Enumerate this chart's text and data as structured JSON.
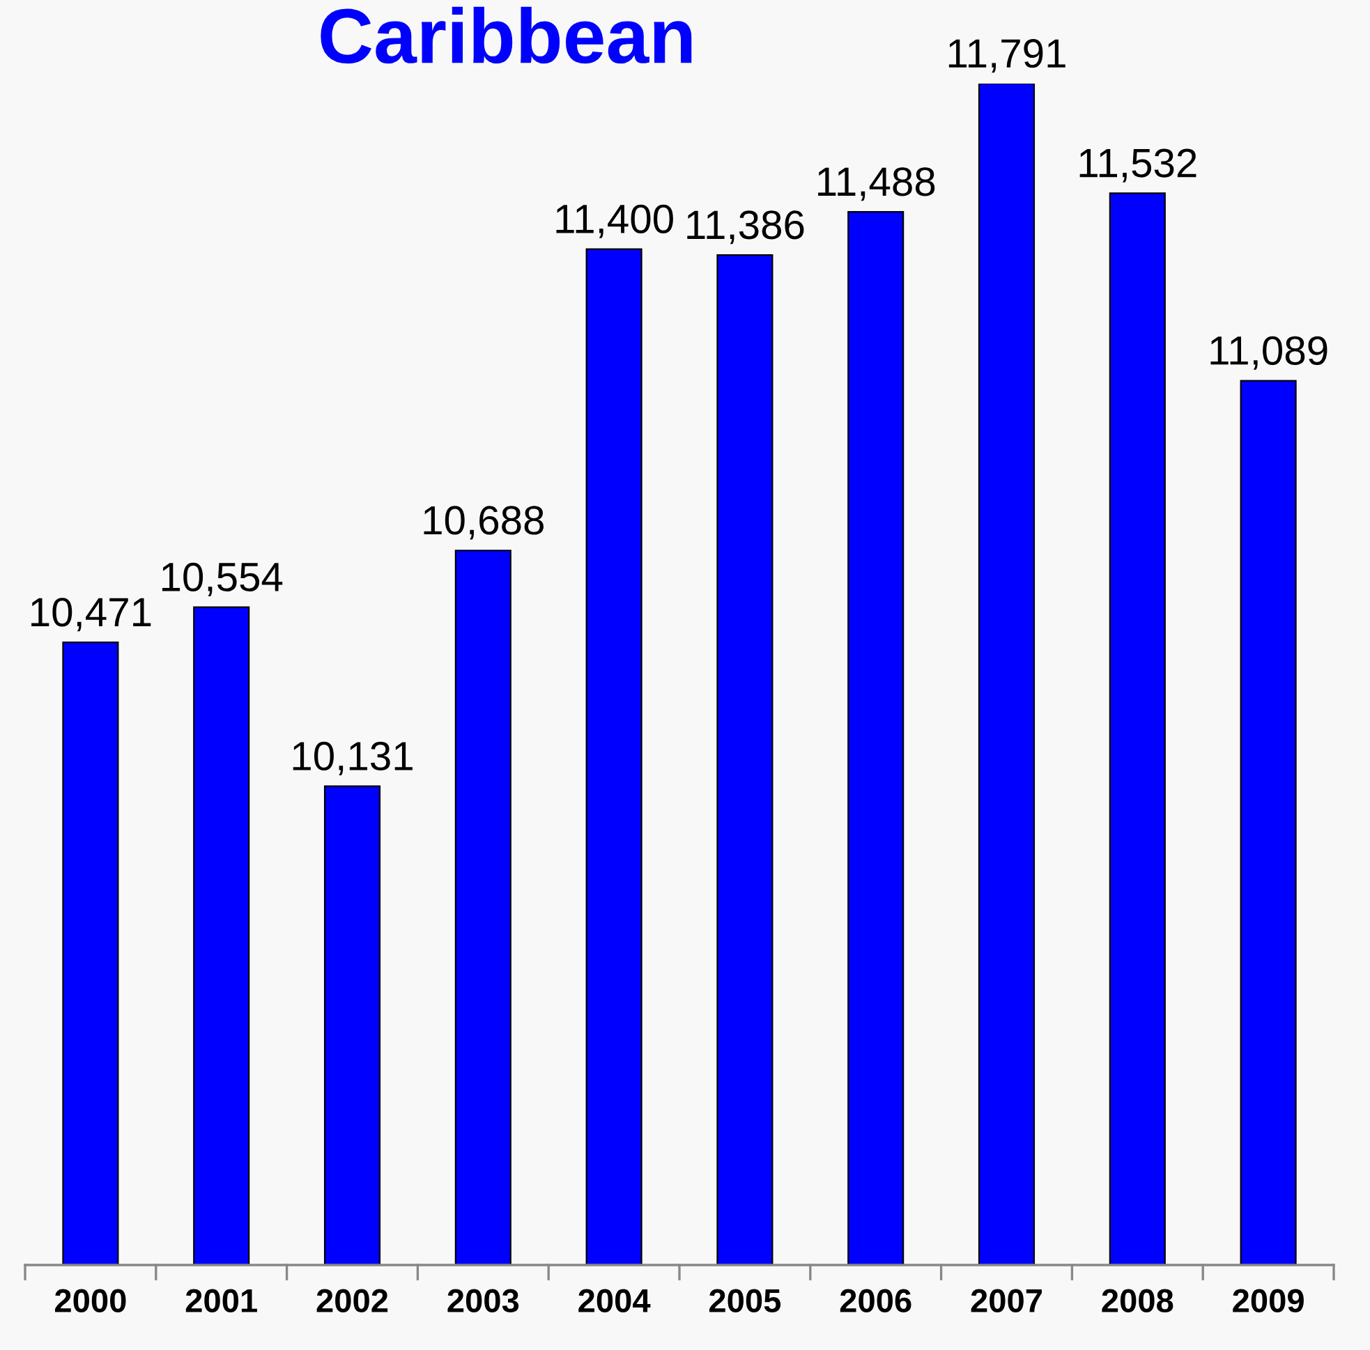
{
  "chart_data": {
    "type": "bar",
    "title": "Caribbean",
    "categories": [
      "2000",
      "2001",
      "2002",
      "2003",
      "2004",
      "2005",
      "2006",
      "2007",
      "2008",
      "2009"
    ],
    "values": [
      10471,
      10554,
      10131,
      10688,
      11400,
      11386,
      11488,
      11791,
      11532,
      11089
    ],
    "value_labels": [
      "10,471",
      "10,554",
      "10,131",
      "10,688",
      "11,400",
      "11,386",
      "11,488",
      "11,791",
      "11,532",
      "11,089"
    ],
    "color": "#0000ff",
    "ylim": [
      9000,
      11791
    ],
    "tick_labels": "x",
    "grid": false,
    "legend": false
  }
}
